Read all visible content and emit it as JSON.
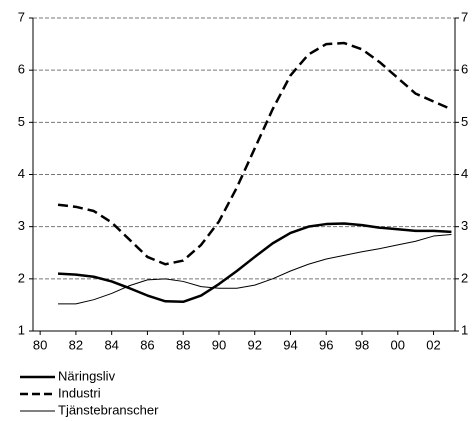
{
  "chart_data": {
    "type": "line",
    "x": [
      1981,
      1982,
      1983,
      1984,
      1985,
      1986,
      1987,
      1988,
      1989,
      1990,
      1991,
      1992,
      1993,
      1994,
      1995,
      1996,
      1997,
      1998,
      1999,
      2000,
      2001,
      2002,
      2003
    ],
    "series": [
      {
        "name": "Näringsliv",
        "color": "#000000",
        "line_width": 2.5,
        "dashed": false,
        "values": [
          2.1,
          2.08,
          2.04,
          1.95,
          1.82,
          1.68,
          1.57,
          1.56,
          1.68,
          1.9,
          2.15,
          2.42,
          2.68,
          2.88,
          3.0,
          3.05,
          3.06,
          3.03,
          2.98,
          2.95,
          2.92,
          2.92,
          2.9
        ]
      },
      {
        "name": "Industri",
        "color": "#000000",
        "line_width": 2.5,
        "dashed": true,
        "values": [
          3.42,
          3.38,
          3.3,
          3.08,
          2.75,
          2.42,
          2.28,
          2.35,
          2.65,
          3.1,
          3.75,
          4.5,
          5.25,
          5.9,
          6.3,
          6.5,
          6.52,
          6.4,
          6.15,
          5.85,
          5.55,
          5.4,
          5.25
        ]
      },
      {
        "name": "Tjänstebranscher",
        "color": "#000000",
        "line_width": 1,
        "dashed": false,
        "values": [
          1.52,
          1.52,
          1.6,
          1.72,
          1.87,
          1.98,
          2.0,
          1.95,
          1.85,
          1.82,
          1.82,
          1.88,
          2.0,
          2.15,
          2.28,
          2.38,
          2.45,
          2.52,
          2.58,
          2.65,
          2.72,
          2.82,
          2.85
        ]
      }
    ],
    "xlim": [
      1979.6,
      2003.2
    ],
    "xticks": [
      {
        "value": 1980,
        "label": "80"
      },
      {
        "value": 1982,
        "label": "82"
      },
      {
        "value": 1984,
        "label": "84"
      },
      {
        "value": 1986,
        "label": "86"
      },
      {
        "value": 1988,
        "label": "88"
      },
      {
        "value": 1990,
        "label": "90"
      },
      {
        "value": 1992,
        "label": "92"
      },
      {
        "value": 1994,
        "label": "94"
      },
      {
        "value": 1996,
        "label": "96"
      },
      {
        "value": 1998,
        "label": "98"
      },
      {
        "value": 2000,
        "label": "00"
      },
      {
        "value": 2002,
        "label": "02"
      }
    ],
    "ylim": [
      1,
      7
    ],
    "yticks": [
      1,
      2,
      3,
      4,
      5,
      6,
      7
    ],
    "y2lim": [
      1,
      7
    ],
    "y2ticks": [
      1,
      2,
      3,
      4,
      5,
      6,
      7
    ],
    "grid": true
  }
}
